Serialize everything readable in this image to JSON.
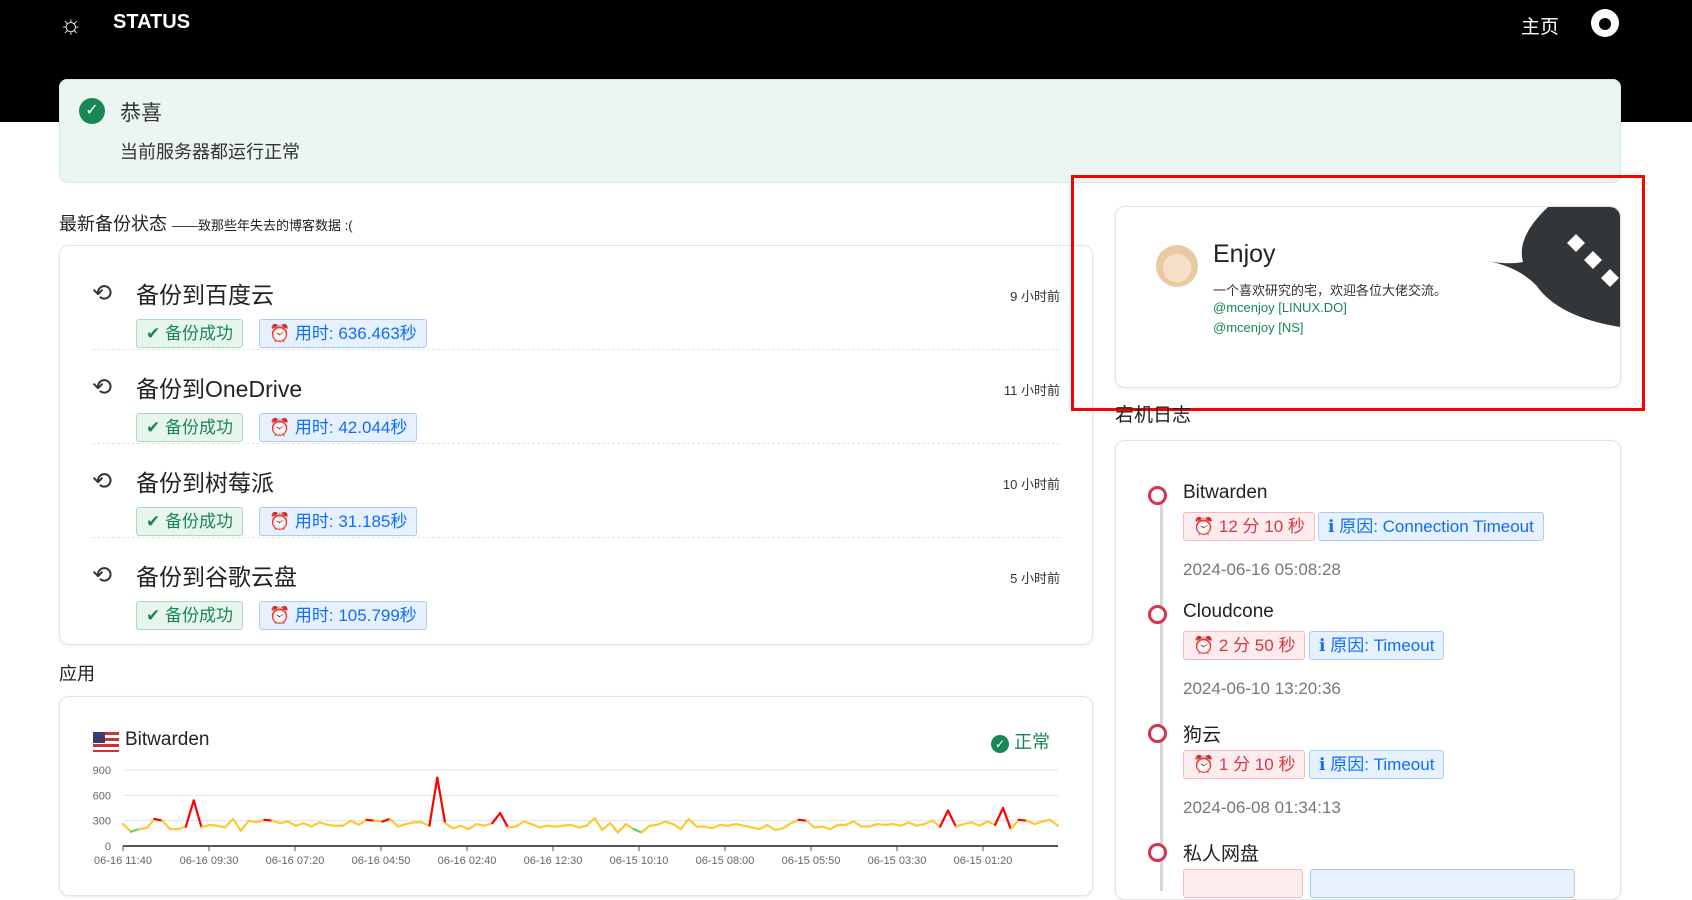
{
  "header": {
    "brand": "STATUS",
    "nav_home": "主页",
    "icons": [
      "sun-icon",
      "github-icon"
    ]
  },
  "alert": {
    "title": "恭喜",
    "message": "当前服务器都运行正常"
  },
  "backups": {
    "title": "最新备份状态",
    "subtitle": "——致那些年失去的博客数据 :(",
    "items": [
      {
        "name": "备份到百度云",
        "ago": "9 小时前",
        "status": "备份成功",
        "duration": "用时: 636.463秒"
      },
      {
        "name": "备份到OneDrive",
        "ago": "11 小时前",
        "status": "备份成功",
        "duration": "用时: 42.044秒"
      },
      {
        "name": "备份到树莓派",
        "ago": "10 小时前",
        "status": "备份成功",
        "duration": "用时: 31.185秒"
      },
      {
        "name": "备份到谷歌云盘",
        "ago": "5 小时前",
        "status": "备份成功",
        "duration": "用时: 105.799秒"
      }
    ]
  },
  "apps": {
    "title": "应用",
    "items": [
      {
        "name": "Bitwarden",
        "status": "正常",
        "flag": "us-flag-icon"
      }
    ]
  },
  "profile": {
    "name": "Enjoy",
    "desc": "一个喜欢研究的宅，欢迎各位大佬交流。",
    "links": [
      "@mcenjoy [LINUX.DO]",
      "@mcenjoy [NS]"
    ]
  },
  "downtime": {
    "title": "宕机日志",
    "items": [
      {
        "name": "Bitwarden",
        "duration": "12 分 10 秒",
        "reason": "原因: Connection Timeout",
        "time": "2024-06-16 05:08:28"
      },
      {
        "name": "Cloudcone",
        "duration": "2 分 50 秒",
        "reason": "原因: Timeout",
        "time": "2024-06-10 13:20:36"
      },
      {
        "name": "狗云",
        "duration": "1 分 10 秒",
        "reason": "原因: Timeout",
        "time": "2024-06-08 01:34:13"
      },
      {
        "name": "私人网盘",
        "duration": "",
        "reason": "",
        "time": ""
      }
    ]
  },
  "colors": {
    "ok": "#198754",
    "info": "#0d6efd",
    "danger": "#dc3545",
    "high": "#ff0000",
    "mid": "#ffc832",
    "low": "#4cd964"
  },
  "chart_data": {
    "type": "line",
    "ylim": [
      0,
      900
    ],
    "yticks": [
      "900",
      "600",
      "300",
      "0"
    ],
    "xticks": [
      "06-16 11:40",
      "06-16 09:30",
      "06-16 07:20",
      "06-16 04:50",
      "06-16 02:40",
      "06-16 12:30",
      "06-15 10:10",
      "06-15 08:00",
      "06-15 05:50",
      "06-15 03:30",
      "06-15 01:20"
    ],
    "values": [
      260,
      170,
      200,
      210,
      320,
      300,
      200,
      200,
      230,
      540,
      220,
      250,
      240,
      220,
      320,
      180,
      300,
      280,
      310,
      300,
      270,
      290,
      240,
      270,
      230,
      280,
      250,
      240,
      240,
      300,
      250,
      310,
      300,
      290,
      320,
      230,
      260,
      280,
      280,
      240,
      810,
      270,
      210,
      240,
      200,
      260,
      240,
      270,
      390,
      220,
      230,
      290,
      260,
      220,
      240,
      230,
      240,
      250,
      220,
      240,
      330,
      190,
      270,
      160,
      260,
      200,
      160,
      240,
      250,
      290,
      260,
      200,
      320,
      230,
      230,
      210,
      250,
      240,
      260,
      240,
      220,
      200,
      250,
      190,
      210,
      270,
      310,
      300,
      220,
      230,
      200,
      250,
      250,
      290,
      230,
      230,
      260,
      250,
      260,
      240,
      280,
      240,
      260,
      300,
      230,
      420,
      230,
      260,
      280,
      240,
      290,
      250,
      450,
      200,
      310,
      300,
      260,
      290,
      310,
      240
    ]
  }
}
